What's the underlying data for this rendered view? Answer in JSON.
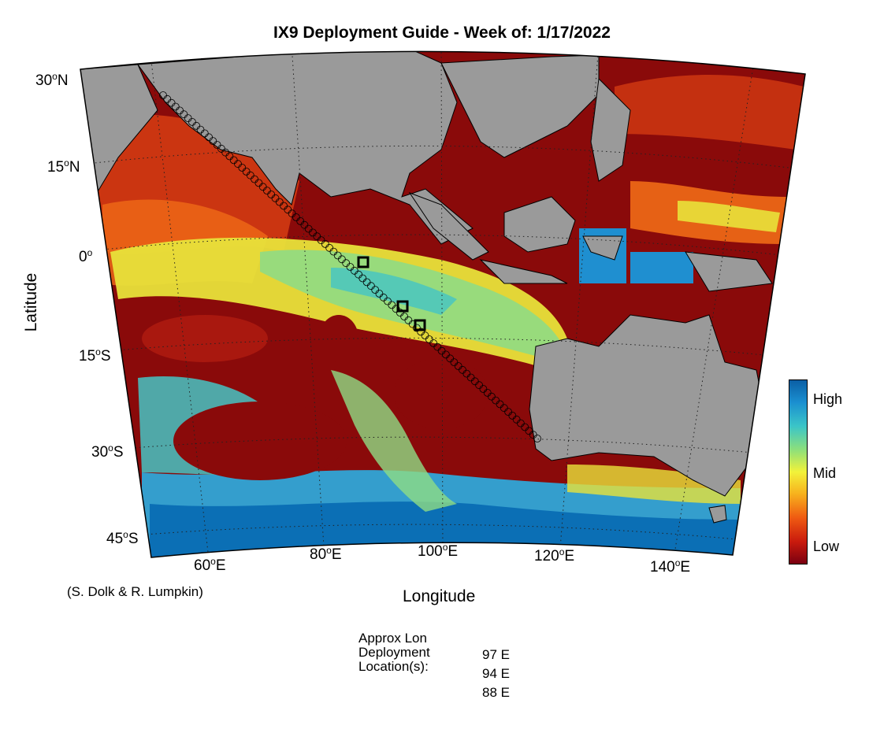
{
  "title": "IX9 Deployment Guide - Week of: 1/17/2022",
  "axes": {
    "xlabel": "Longitude",
    "ylabel": "Latitude",
    "lat_ticks": [
      {
        "num": "30",
        "hemi": "N"
      },
      {
        "num": "15",
        "hemi": "N"
      },
      {
        "num": "0",
        "hemi": ""
      },
      {
        "num": "15",
        "hemi": "S"
      },
      {
        "num": "30",
        "hemi": "S"
      },
      {
        "num": "45",
        "hemi": "S"
      }
    ],
    "lon_ticks": [
      {
        "num": "60",
        "hemi": "E"
      },
      {
        "num": "80",
        "hemi": "E"
      },
      {
        "num": "100",
        "hemi": "E"
      },
      {
        "num": "120",
        "hemi": "E"
      },
      {
        "num": "140",
        "hemi": "E"
      }
    ]
  },
  "credit": "(S. Dolk & R. Lumpkin)",
  "colorbar": {
    "high": "High",
    "mid": "Mid",
    "low": "Low"
  },
  "deployment": {
    "heading": [
      "Approx Lon",
      "Deployment",
      "Location(s):"
    ],
    "values": [
      "97 E",
      "94 E",
      "88 E"
    ]
  },
  "colors": {
    "land": "#9a9a9a",
    "low": "#7a0010",
    "high": "#0b5fa5",
    "track": "#000000"
  }
}
